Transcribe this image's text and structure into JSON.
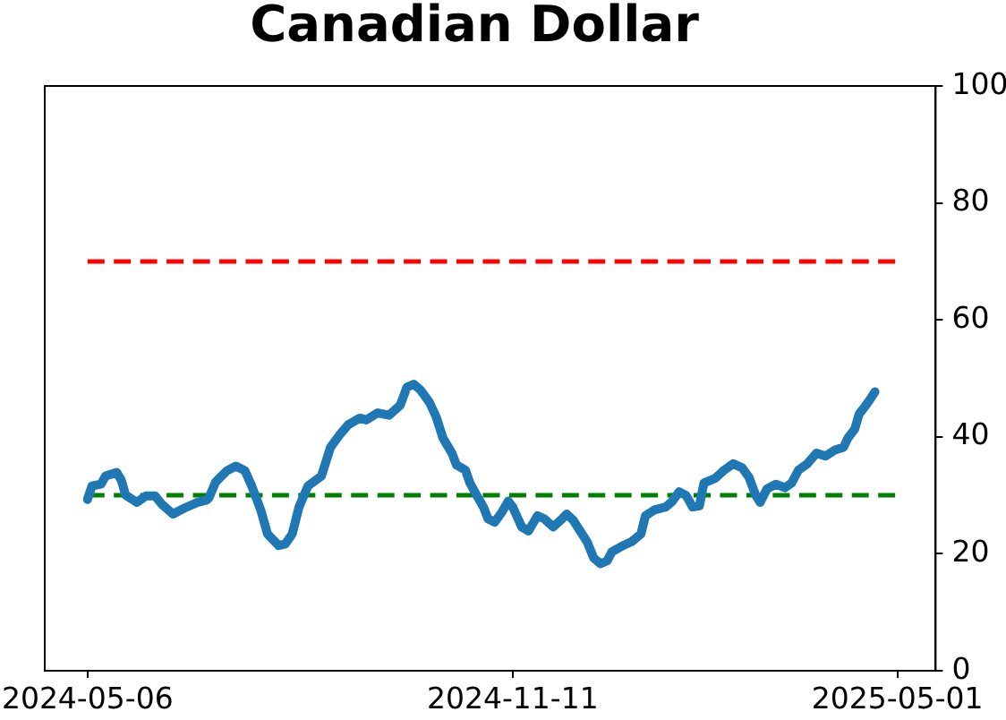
{
  "chart_data": {
    "type": "line",
    "title": "Canadian Dollar",
    "xlim": [
      "2024-04-17",
      "2025-05-18"
    ],
    "xticks": [
      "2024-05-06",
      "2024-11-11",
      "2025-05-01"
    ],
    "ylim": [
      0,
      100
    ],
    "yticks": [
      0,
      20,
      40,
      60,
      80,
      100
    ],
    "grid": false,
    "legend": false,
    "marker": "none",
    "series": [
      {
        "color": "#1f77b4",
        "line_style": "solid",
        "x": [
          "2024-05-06",
          "2024-05-08",
          "2024-05-12",
          "2024-05-14",
          "2024-05-19",
          "2024-05-21",
          "2024-05-23",
          "2024-05-28",
          "2024-06-01",
          "2024-06-05",
          "2024-06-08",
          "2024-06-13",
          "2024-06-18",
          "2024-06-24",
          "2024-06-28",
          "2024-06-29",
          "2024-07-02",
          "2024-07-07",
          "2024-07-11",
          "2024-07-15",
          "2024-07-18",
          "2024-07-22",
          "2024-07-25",
          "2024-07-30",
          "2024-08-02",
          "2024-08-05",
          "2024-08-08",
          "2024-08-12",
          "2024-08-18",
          "2024-08-22",
          "2024-08-26",
          "2024-08-30",
          "2024-09-04",
          "2024-09-07",
          "2024-09-12",
          "2024-09-17",
          "2024-09-22",
          "2024-09-25",
          "2024-09-28",
          "2024-10-01",
          "2024-10-05",
          "2024-10-08",
          "2024-10-11",
          "2024-10-15",
          "2024-10-17",
          "2024-10-21",
          "2024-10-23",
          "2024-10-26",
          "2024-10-29",
          "2024-10-31",
          "2024-11-03",
          "2024-11-06",
          "2024-11-09",
          "2024-11-11",
          "2024-11-15",
          "2024-11-18",
          "2024-11-22",
          "2024-11-25",
          "2024-11-29",
          "2024-12-03",
          "2024-12-05",
          "2024-12-08",
          "2024-12-11",
          "2024-12-14",
          "2024-12-17",
          "2024-12-20",
          "2024-12-23",
          "2024-12-25",
          "2024-12-30",
          "2025-01-03",
          "2025-01-07",
          "2025-01-09",
          "2025-01-13",
          "2025-01-18",
          "2025-01-21",
          "2025-01-24",
          "2025-01-27",
          "2025-01-30",
          "2025-02-02",
          "2025-02-04",
          "2025-02-09",
          "2025-02-13",
          "2025-02-17",
          "2025-02-21",
          "2025-02-24",
          "2025-02-27",
          "2025-03-01",
          "2025-03-04",
          "2025-03-08",
          "2025-03-12",
          "2025-03-15",
          "2025-03-18",
          "2025-03-22",
          "2025-03-26",
          "2025-03-30",
          "2025-04-03",
          "2025-04-07",
          "2025-04-09",
          "2025-04-12",
          "2025-04-14",
          "2025-04-17",
          "2025-04-19",
          "2025-04-21"
        ],
        "values": [
          29.3,
          31.6,
          31.9,
          33.3,
          33.9,
          32.6,
          30.0,
          28.8,
          29.9,
          29.9,
          28.5,
          26.8,
          27.8,
          28.8,
          29.2,
          29.6,
          32.3,
          34.2,
          35.0,
          34.2,
          31.6,
          27.5,
          23.4,
          21.4,
          21.7,
          23.4,
          28.0,
          31.6,
          33.3,
          38.2,
          40.3,
          42.1,
          43.2,
          42.9,
          44.1,
          43.7,
          45.4,
          48.5,
          49.0,
          48.0,
          45.9,
          43.4,
          39.8,
          37.2,
          35.2,
          34.3,
          32.1,
          30.0,
          28.0,
          26.0,
          25.4,
          27.0,
          29.0,
          28.0,
          24.6,
          23.9,
          26.5,
          26.0,
          24.6,
          26.0,
          26.8,
          25.7,
          23.9,
          22.1,
          19.3,
          18.3,
          18.8,
          20.3,
          21.4,
          22.1,
          23.4,
          26.5,
          27.5,
          28.0,
          29.0,
          30.6,
          30.0,
          28.0,
          28.2,
          32.1,
          32.9,
          34.3,
          35.4,
          34.7,
          33.1,
          30.0,
          28.8,
          31.1,
          31.9,
          31.3,
          32.1,
          34.3,
          35.4,
          37.2,
          36.7,
          37.7,
          38.2,
          39.8,
          41.3,
          43.9,
          45.4,
          46.5,
          47.7
        ]
      },
      {
        "color": "#ff0000",
        "line_style": "dashed",
        "x": [
          "2024-05-06",
          "2025-04-30"
        ],
        "values": [
          70,
          70
        ]
      },
      {
        "color": "#008000",
        "line_style": "dashed",
        "x": [
          "2024-05-06",
          "2025-04-30"
        ],
        "values": [
          30,
          30
        ]
      }
    ]
  }
}
